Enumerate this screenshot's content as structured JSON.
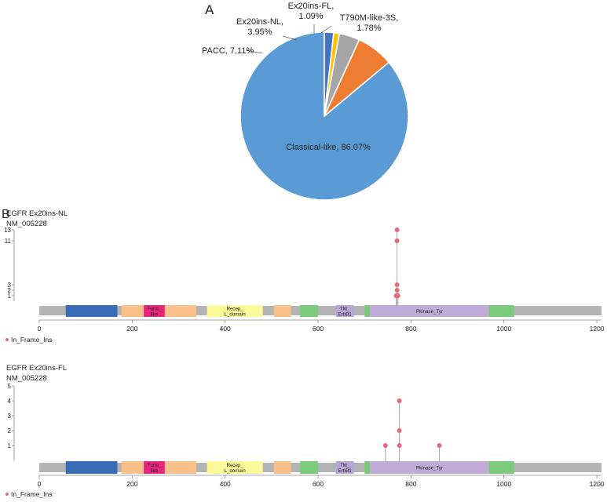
{
  "panel_labels": {
    "a": "A",
    "b": "B"
  },
  "chart_data": [
    {
      "type": "pie",
      "title": "",
      "start": "12 o'clock",
      "direction": "counter-clockwise",
      "slices": [
        {
          "label": "Classical-like, 86.07%",
          "label_lines": [
            "Classical-like, 86.07%"
          ],
          "value": 86.07,
          "color": "#5b9bd5"
        },
        {
          "label": "PACC, 7.11%",
          "label_lines": [
            "PACC, 7.11%"
          ],
          "value": 7.11,
          "color": "#ed7d31"
        },
        {
          "label": "Ex20ins-NL, 3.95%",
          "label_lines": [
            "Ex20ins-NL,",
            "3.95%"
          ],
          "value": 3.95,
          "color": "#a5a5a5"
        },
        {
          "label": "Ex20ins-FL, 1.09%",
          "label_lines": [
            "Ex20ins-FL,",
            "1.09%"
          ],
          "value": 1.09,
          "color": "#ffc000"
        },
        {
          "label": "T790M-like-3S, 1.78%",
          "label_lines": [
            "T790M-like-3S,",
            "1.78%"
          ],
          "value": 1.78,
          "color": "#4472c4"
        }
      ]
    },
    {
      "type": "lollipop",
      "title": "EGFR Ex20ins-NL",
      "subtitle": "NM_005228",
      "y_ticks": [
        1,
        2,
        3,
        11,
        13
      ],
      "ylim": [
        0,
        13
      ],
      "xlim": [
        0,
        1210
      ],
      "x_ticks": [
        0,
        200,
        400,
        600,
        800,
        1000,
        1200
      ],
      "legend": "In_Frame_Ins",
      "mutation_color": "#e06c75",
      "lollipops": [
        {
          "position": 770,
          "count": 13
        },
        {
          "position": 770,
          "count": 11
        },
        {
          "position": 770,
          "count": 3
        },
        {
          "position": 770,
          "count": 2
        },
        {
          "position": 768,
          "count": 1
        },
        {
          "position": 772,
          "count": 1
        }
      ],
      "protein_length": 1210,
      "domains": [
        {
          "start": 57,
          "end": 168,
          "color": "#3a6db5",
          "label_lines": []
        },
        {
          "start": 177,
          "end": 338,
          "color": "#f9c08a",
          "label_lines": []
        },
        {
          "start": 225,
          "end": 270,
          "color": "#e8247c",
          "label_lines": [
            "Furin_",
            "like"
          ]
        },
        {
          "start": 361,
          "end": 481,
          "color": "#fbf99a",
          "label_lines": [
            "Recep_",
            "L_domain"
          ]
        },
        {
          "start": 505,
          "end": 542,
          "color": "#f9c08a",
          "label_lines": []
        },
        {
          "start": 561,
          "end": 600,
          "color": "#7ccb7c",
          "label_lines": []
        },
        {
          "start": 638,
          "end": 677,
          "color": "#b9a5d6",
          "label_lines": [
            "TM_",
            "ErbB1"
          ]
        },
        {
          "start": 700,
          "end": 712,
          "color": "#7ccb7c",
          "label_lines": []
        },
        {
          "start": 712,
          "end": 968,
          "color": "#c0abd8",
          "label_lines": [
            "Pkinase_Tyr"
          ]
        },
        {
          "start": 968,
          "end": 1022,
          "color": "#7ccb7c",
          "label_lines": []
        }
      ]
    },
    {
      "type": "lollipop",
      "title": "EGFR Ex20ins-FL",
      "subtitle": "NM_005228",
      "y_ticks": [
        1,
        2,
        3,
        4,
        5
      ],
      "ylim": [
        0,
        5
      ],
      "xlim": [
        0,
        1210
      ],
      "x_ticks": [
        0,
        200,
        400,
        600,
        800,
        1000,
        1200
      ],
      "legend": "In_Frame_Ins",
      "mutation_color": "#e06c75",
      "lollipops": [
        {
          "position": 745,
          "count": 1
        },
        {
          "position": 775,
          "count": 4
        },
        {
          "position": 775,
          "count": 2
        },
        {
          "position": 775,
          "count": 1
        },
        {
          "position": 861,
          "count": 1
        }
      ],
      "protein_length": 1210,
      "domains": [
        {
          "start": 57,
          "end": 168,
          "color": "#3a6db5",
          "label_lines": []
        },
        {
          "start": 177,
          "end": 338,
          "color": "#f9c08a",
          "label_lines": []
        },
        {
          "start": 225,
          "end": 270,
          "color": "#e8247c",
          "label_lines": [
            "Furin_",
            "like"
          ]
        },
        {
          "start": 361,
          "end": 481,
          "color": "#fbf99a",
          "label_lines": [
            "Recep_",
            "L_domain"
          ]
        },
        {
          "start": 505,
          "end": 542,
          "color": "#f9c08a",
          "label_lines": []
        },
        {
          "start": 561,
          "end": 600,
          "color": "#7ccb7c",
          "label_lines": []
        },
        {
          "start": 638,
          "end": 677,
          "color": "#b9a5d6",
          "label_lines": [
            "TM_",
            "ErbB1"
          ]
        },
        {
          "start": 700,
          "end": 712,
          "color": "#7ccb7c",
          "label_lines": []
        },
        {
          "start": 712,
          "end": 968,
          "color": "#c0abd8",
          "label_lines": [
            "Pkinase_Tyr"
          ]
        },
        {
          "start": 968,
          "end": 1022,
          "color": "#7ccb7c",
          "label_lines": []
        }
      ]
    }
  ]
}
